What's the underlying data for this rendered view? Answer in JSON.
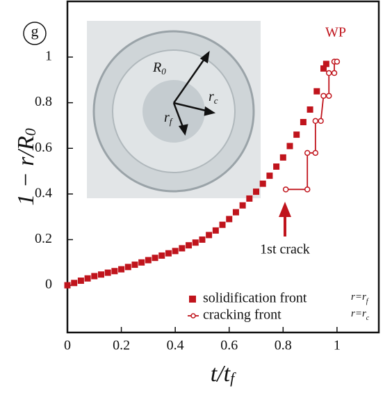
{
  "chart_data": {
    "type": "scatter",
    "panel_label": "g",
    "annotation": "WP",
    "crack_annotation": "1st crack",
    "x_label": {
      "main": "t/t",
      "sub": "f"
    },
    "y_label": {
      "main": "1 − r/R",
      "sub": "0"
    },
    "xlim": [
      0,
      1.155
    ],
    "ylim": [
      -0.207,
      1.244
    ],
    "xticks": [
      0,
      0.2,
      0.4,
      0.6,
      0.8,
      1
    ],
    "yticks": [
      0,
      0.2,
      0.4,
      0.6,
      0.8,
      1
    ],
    "inset_labels": [
      {
        "main": "R",
        "sub": "0"
      },
      {
        "main": "r",
        "sub": "c"
      },
      {
        "main": "r",
        "sub": "f"
      }
    ],
    "series": [
      {
        "name": "solidification front",
        "note": {
          "main": "r=r",
          "sub": "f"
        },
        "color": "#c0141c",
        "marker": "square",
        "x": [
          0,
          0.025,
          0.05,
          0.075,
          0.1,
          0.125,
          0.15,
          0.175,
          0.2,
          0.225,
          0.25,
          0.275,
          0.3,
          0.325,
          0.35,
          0.375,
          0.4,
          0.425,
          0.45,
          0.475,
          0.5,
          0.525,
          0.55,
          0.575,
          0.6,
          0.625,
          0.65,
          0.675,
          0.7,
          0.725,
          0.75,
          0.775,
          0.8,
          0.825,
          0.85,
          0.875,
          0.9,
          0.925,
          0.95,
          0.96
        ],
        "values": [
          0,
          0.01,
          0.02,
          0.03,
          0.04,
          0.047,
          0.055,
          0.062,
          0.07,
          0.08,
          0.09,
          0.1,
          0.11,
          0.12,
          0.13,
          0.14,
          0.15,
          0.162,
          0.175,
          0.187,
          0.2,
          0.22,
          0.24,
          0.265,
          0.29,
          0.32,
          0.35,
          0.38,
          0.41,
          0.445,
          0.48,
          0.52,
          0.56,
          0.61,
          0.66,
          0.715,
          0.77,
          0.85,
          0.95,
          0.97
        ]
      },
      {
        "name": "cracking front",
        "note": {
          "main": "r=r",
          "sub": "c"
        },
        "color": "#c0141c",
        "marker": "circle-line",
        "x": [
          0.81,
          0.89,
          0.89,
          0.92,
          0.92,
          0.94,
          0.95,
          0.97,
          0.97,
          0.99,
          0.99,
          1.0
        ],
        "values": [
          0.42,
          0.42,
          0.58,
          0.58,
          0.72,
          0.72,
          0.83,
          0.83,
          0.93,
          0.93,
          0.98,
          0.98
        ]
      }
    ]
  }
}
